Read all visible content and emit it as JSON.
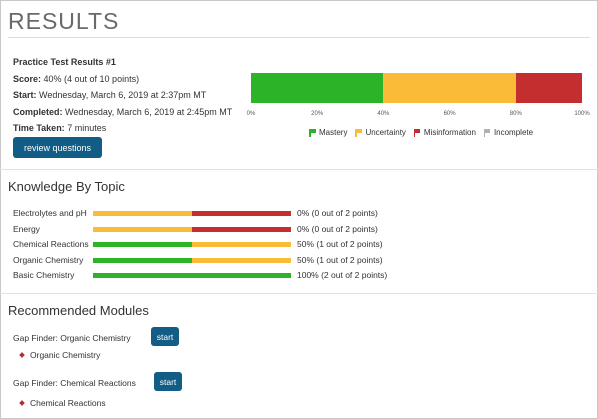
{
  "header": {
    "title": "RESULTS"
  },
  "summary": {
    "heading": "Practice Test Results #1",
    "score_label": "Score:",
    "score_value": " 40% (4 out of 10 points)",
    "start_label": "Start:",
    "start_value": " Wednesday, March 6, 2019 at 2:37pm MT",
    "completed_label": "Completed:",
    "completed_value": " Wednesday, March 6, 2019 at 2:45pm MT",
    "time_label": "Time Taken:",
    "time_value": " 7 minutes",
    "review_button": "review questions"
  },
  "colors": {
    "mastery": "#2cb327",
    "uncertainty": "#f9bb38",
    "misinformation": "#c42e2e",
    "incomplete": "#b0b0b0",
    "button": "#125d86"
  },
  "chart_data": {
    "type": "bar",
    "orientation": "horizontal-stacked",
    "categories": [
      "Result"
    ],
    "series": [
      {
        "name": "Mastery",
        "values": [
          40
        ]
      },
      {
        "name": "Uncertainty",
        "values": [
          40
        ]
      },
      {
        "name": "Misinformation",
        "values": [
          20
        ]
      },
      {
        "name": "Incomplete",
        "values": [
          0
        ]
      }
    ],
    "xlim": [
      0,
      100
    ],
    "ticks": [
      "0%",
      "20%",
      "40%",
      "60%",
      "80%",
      "100%"
    ],
    "legend_position": "bottom"
  },
  "legend": {
    "mastery": "Mastery",
    "uncertainty": "Uncertainty",
    "misinformation": "Misinformation",
    "incomplete": "Incomplete"
  },
  "topics": {
    "title": "Knowledge By Topic",
    "items": [
      {
        "name": "Electrolytes and pH",
        "result": "0% (0 out of 2 points)",
        "mastery": 0,
        "uncertainty": 50,
        "misinformation": 50
      },
      {
        "name": "Energy",
        "result": "0% (0 out of 2 points)",
        "mastery": 0,
        "uncertainty": 50,
        "misinformation": 50
      },
      {
        "name": "Chemical Reactions",
        "result": "50% (1 out of 2 points)",
        "mastery": 50,
        "uncertainty": 50,
        "misinformation": 0
      },
      {
        "name": "Organic Chemistry",
        "result": "50% (1 out of 2 points)",
        "mastery": 50,
        "uncertainty": 50,
        "misinformation": 0
      },
      {
        "name": "Basic Chemistry",
        "result": "100% (2 out of 2 points)",
        "mastery": 100,
        "uncertainty": 0,
        "misinformation": 0
      }
    ]
  },
  "modules": {
    "title": "Recommended Modules",
    "items": [
      {
        "name": "Gap Finder: Organic Chemistry",
        "start_label": "start",
        "sub_item": "Organic Chemistry"
      },
      {
        "name": "Gap Finder: Chemical Reactions",
        "start_label": "start",
        "sub_item": "Chemical Reactions"
      }
    ]
  }
}
